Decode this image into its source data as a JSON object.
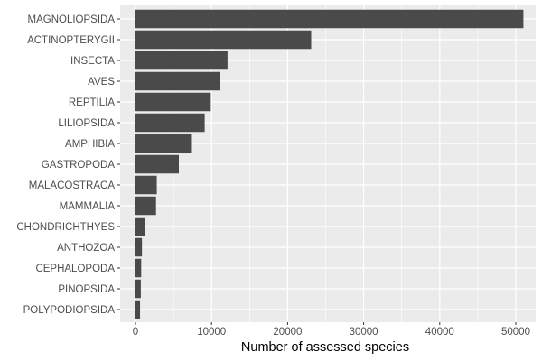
{
  "chart_data": {
    "type": "bar",
    "orientation": "horizontal",
    "title": "",
    "xlabel": "Number of assessed species",
    "ylabel": "",
    "xlim": [
      0,
      52000
    ],
    "x_ticks": [
      0,
      10000,
      20000,
      30000,
      40000,
      50000
    ],
    "grid": true,
    "legend": "none",
    "categories": [
      "MAGNOLIOPSIDA",
      "ACTINOPTERYGII",
      "INSECTA",
      "AVES",
      "REPTILIA",
      "LILIOPSIDA",
      "AMPHIBIA",
      "GASTROPODA",
      "MALACOSTRACA",
      "MAMMALIA",
      "CHONDRICHTHYES",
      "ANTHOZOA",
      "CEPHALOPODA",
      "PINOPSIDA",
      "POLYPODIOPSIDA"
    ],
    "values": [
      51000,
      23100,
      12100,
      11100,
      9900,
      9100,
      7300,
      5700,
      2800,
      2700,
      1200,
      850,
      750,
      700,
      600
    ],
    "colors": {
      "panel_background": "#ebebeb",
      "grid_major": "#ffffff",
      "bar_fill": "#4a4a4a",
      "tick_text": "#4d4d4d"
    }
  }
}
